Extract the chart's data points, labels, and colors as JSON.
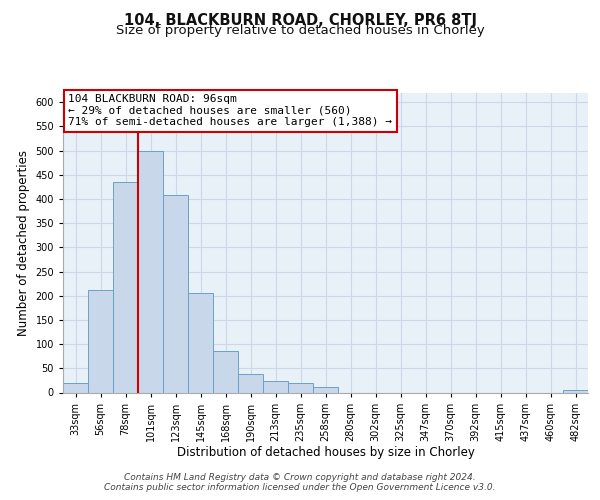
{
  "title": "104, BLACKBURN ROAD, CHORLEY, PR6 8TJ",
  "subtitle": "Size of property relative to detached houses in Chorley",
  "xlabel": "Distribution of detached houses by size in Chorley",
  "ylabel": "Number of detached properties",
  "bin_labels": [
    "33sqm",
    "56sqm",
    "78sqm",
    "101sqm",
    "123sqm",
    "145sqm",
    "168sqm",
    "190sqm",
    "213sqm",
    "235sqm",
    "258sqm",
    "280sqm",
    "302sqm",
    "325sqm",
    "347sqm",
    "370sqm",
    "392sqm",
    "415sqm",
    "437sqm",
    "460sqm",
    "482sqm"
  ],
  "bar_values": [
    20,
    212,
    435,
    500,
    408,
    205,
    85,
    38,
    23,
    19,
    12,
    0,
    0,
    0,
    0,
    0,
    0,
    0,
    0,
    0,
    5
  ],
  "bar_color": "#c8d8ea",
  "bar_edge_color": "#6aa0c8",
  "vline_x_index": 3,
  "vline_color": "#cc0000",
  "annotation_line1": "104 BLACKBURN ROAD: 96sqm",
  "annotation_line2": "← 29% of detached houses are smaller (560)",
  "annotation_line3": "71% of semi-detached houses are larger (1,388) →",
  "annotation_box_color": "#ffffff",
  "annotation_box_edge": "#cc0000",
  "ylim": [
    0,
    620
  ],
  "yticks": [
    0,
    50,
    100,
    150,
    200,
    250,
    300,
    350,
    400,
    450,
    500,
    550,
    600
  ],
  "footer_line1": "Contains HM Land Registry data © Crown copyright and database right 2024.",
  "footer_line2": "Contains public sector information licensed under the Open Government Licence v3.0.",
  "grid_color": "#ccd8e8",
  "background_color": "#e8f0f8",
  "fig_bg_color": "#ffffff",
  "title_fontsize": 10.5,
  "subtitle_fontsize": 9.5,
  "axis_label_fontsize": 8.5,
  "tick_fontsize": 7,
  "footer_fontsize": 6.5,
  "annotation_fontsize": 8
}
